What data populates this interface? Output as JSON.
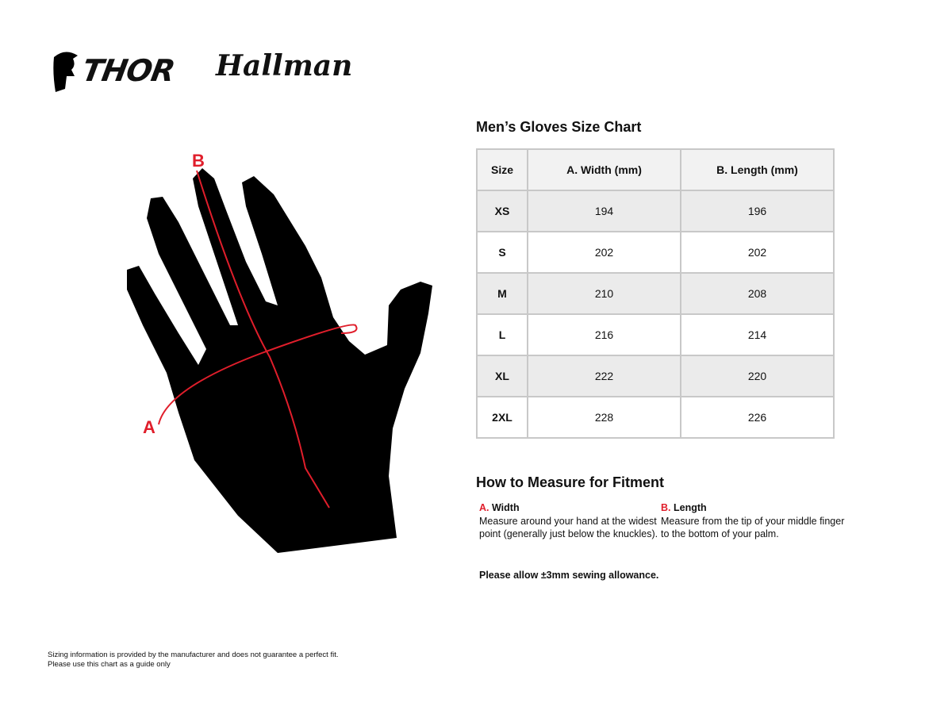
{
  "logos": {
    "thor": "THOR",
    "hallman": "Hallman"
  },
  "diagram": {
    "label_a": "A",
    "label_b": "B",
    "accent": "#e01e2b"
  },
  "chart": {
    "title": "Men’s Gloves Size Chart",
    "headers": [
      "Size",
      "A. Width (mm)",
      "B. Length (mm)"
    ],
    "rows": [
      {
        "size": "XS",
        "width": "194",
        "length": "196"
      },
      {
        "size": "S",
        "width": "202",
        "length": "202"
      },
      {
        "size": "M",
        "width": "210",
        "length": "208"
      },
      {
        "size": "L",
        "width": "216",
        "length": "214"
      },
      {
        "size": "XL",
        "width": "222",
        "length": "220"
      },
      {
        "size": "2XL",
        "width": "228",
        "length": "226"
      }
    ]
  },
  "measure": {
    "title": "How to Measure for Fitment",
    "width": {
      "letter": "A.",
      "label": "Width",
      "text1": "Measure around your hand at the widest",
      "text2": "point (generally just below the knuckles)."
    },
    "length": {
      "letter": "B.",
      "label": "Length",
      "text1": "Measure from the tip of your middle finger",
      "text2": "to the bottom of your palm."
    },
    "allowance": "Please allow ±3mm sewing allowance."
  },
  "disclaimer": {
    "line1": "Sizing information is provided by the manufacturer and does not guarantee a perfect fit.",
    "line2": "Please use this chart as a guide only"
  }
}
